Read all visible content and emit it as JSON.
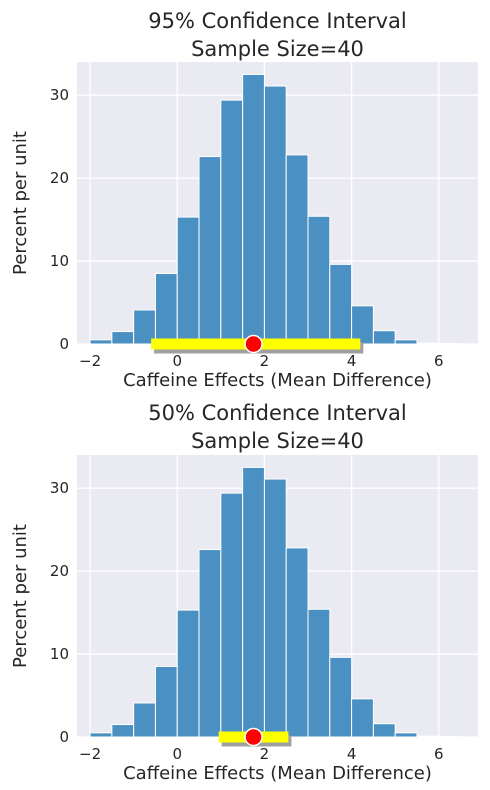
{
  "colors": {
    "background": "#eaeaf2",
    "grid": "#ffffff",
    "bar": "#4a90c2",
    "interval": "#ffff00",
    "interval_shadow": "#a0a0a0",
    "point": "#ff0000"
  },
  "chart_data": [
    {
      "type": "bar",
      "title": "95% Confidence Interval\nSample Size=40",
      "xlabel": "Caffeine Effects (Mean Difference)",
      "ylabel": "Percent per unit",
      "xlim": [
        -2.3,
        6.9
      ],
      "ylim": [
        0,
        34
      ],
      "xticks": [
        -2,
        0,
        2,
        4,
        6
      ],
      "yticks": [
        0,
        10,
        20,
        30
      ],
      "grid": true,
      "bin_edges": [
        -2.0,
        -1.5,
        -1.0,
        -0.5,
        0.0,
        0.5,
        1.0,
        1.5,
        2.0,
        2.5,
        3.0,
        3.5,
        4.0,
        4.5,
        5.0,
        5.5,
        6.0,
        6.5
      ],
      "values": [
        0.5,
        1.5,
        4.1,
        8.5,
        15.3,
        22.6,
        29.4,
        32.5,
        31.1,
        22.8,
        15.4,
        9.6,
        4.6,
        1.6,
        0.5,
        0.1,
        0.05
      ],
      "interval": [
        -0.6,
        4.2
      ],
      "point_estimate": 1.75
    },
    {
      "type": "bar",
      "title": "50% Confidence Interval\nSample Size=40",
      "xlabel": "Caffeine Effects (Mean Difference)",
      "ylabel": "Percent per unit",
      "xlim": [
        -2.3,
        6.9
      ],
      "ylim": [
        0,
        34
      ],
      "xticks": [
        -2,
        0,
        2,
        4,
        6
      ],
      "yticks": [
        0,
        10,
        20,
        30
      ],
      "grid": true,
      "bin_edges": [
        -2.0,
        -1.5,
        -1.0,
        -0.5,
        0.0,
        0.5,
        1.0,
        1.5,
        2.0,
        2.5,
        3.0,
        3.5,
        4.0,
        4.5,
        5.0,
        5.5,
        6.0,
        6.5
      ],
      "values": [
        0.5,
        1.5,
        4.1,
        8.5,
        15.3,
        22.6,
        29.4,
        32.5,
        31.1,
        22.8,
        15.4,
        9.6,
        4.6,
        1.6,
        0.5,
        0.1,
        0.05
      ],
      "interval": [
        0.95,
        2.55
      ],
      "point_estimate": 1.75
    }
  ]
}
